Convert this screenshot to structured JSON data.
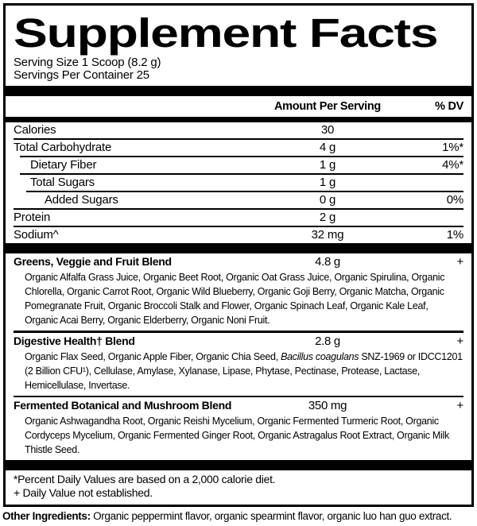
{
  "title": "Supplement Facts",
  "serving": {
    "size": "Serving Size 1 Scoop (8.2 g)",
    "per_container": "Servings Per Container 25"
  },
  "columns": {
    "amount": "Amount Per Serving",
    "dv": "% DV"
  },
  "nutrients": [
    {
      "name": "Calories",
      "amount": "30",
      "dv": ""
    },
    {
      "name": "Total Carbohydrate",
      "amount": "4 g",
      "dv": "1%*"
    },
    {
      "name": "Dietary Fiber",
      "amount": "1 g",
      "dv": "4%*"
    },
    {
      "name": "Total Sugars",
      "amount": "1 g",
      "dv": ""
    },
    {
      "name": "Added Sugars",
      "amount": "0 g",
      "dv": "0%"
    },
    {
      "name": "Protein",
      "amount": "2 g",
      "dv": ""
    },
    {
      "name": "Sodium^",
      "amount": "32 mg",
      "dv": "1%"
    }
  ],
  "blends": [
    {
      "name": "Greens, Veggie and Fruit Blend",
      "amount": "4.8 g",
      "dv": "+",
      "ingredients": [
        {
          "t": "Organic Alfalfa Grass Juice, Organic Beet Root, Organic Oat Grass Juice, Organic Spirulina, Organic Chlorella, Organic Carrot Root, Organic Wild Blueberry, Organic Goji Berry, Organic Matcha, Organic Pomegranate Fruit, Organic Broccoli Stalk and Flower, Organic Spinach Leaf, Organic Kale Leaf, Organic Acai Berry, Organic Elderberry, Organic Noni Fruit."
        }
      ]
    },
    {
      "name": "Digestive Health† Blend",
      "amount": "2.8 g",
      "dv": "+",
      "ingredients": [
        {
          "t": "Organic Flax Seed, Organic Apple Fiber, Organic Chia Seed, "
        },
        {
          "t": "Bacillus coagulans",
          "i": true
        },
        {
          "t": " SNZ-1969 or IDCC1201 (2 Billion CFU¹), Cellulase, Amylase, Xylanase, Lipase, Phytase, Pectinase, Protease, Lactase, Hemicellulase, Invertase."
        }
      ]
    },
    {
      "name": "Fermented Botanical and Mushroom Blend",
      "amount": "350 mg",
      "dv": "+",
      "ingredients": [
        {
          "t": "Organic Ashwagandha Root, Organic Reishi Mycelium, Organic Fermented Turmeric Root, Organic Cordyceps Mycelium, Organic Fermented Ginger Root, Organic Astragalus Root Extract, Organic Milk Thistle Seed."
        }
      ]
    }
  ],
  "footnotes": [
    "*Percent Daily Values are based on a 2,000 calorie diet.",
    "+ Daily Value not established."
  ],
  "other_ingredients": {
    "label": "Other Ingredients:",
    "text": " Organic peppermint flavor, organic spearmint flavor, organic luo han guo extract."
  },
  "colors": {
    "ink": "#000000",
    "paper": "#ffffff"
  }
}
